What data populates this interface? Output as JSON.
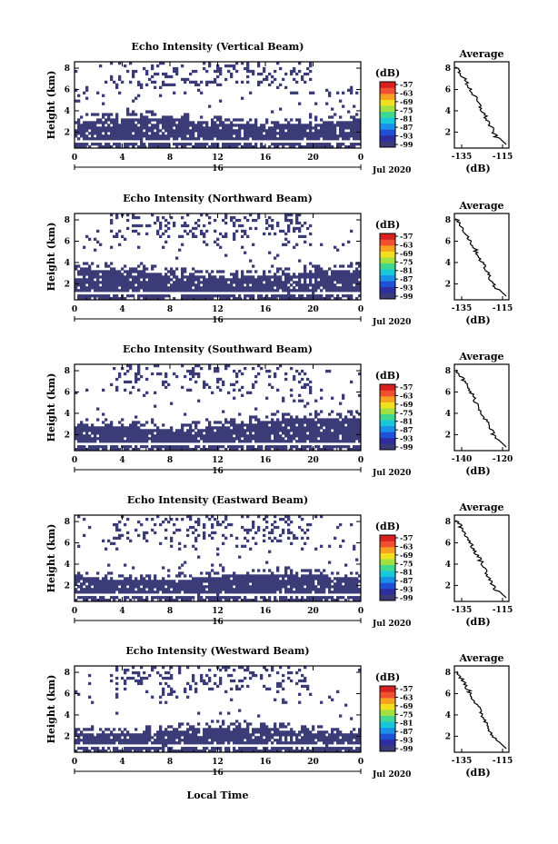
{
  "figure": {
    "common_xlabel": "Local Time",
    "date_label": "Jul 2020",
    "day_label": "16"
  },
  "colors": {
    "fill": "#3b3b78",
    "colorbar": [
      "#3b3b78",
      "#2e2ea0",
      "#2050d8",
      "#1a90e8",
      "#18c8d8",
      "#40d890",
      "#a0e040",
      "#f0e020",
      "#f8a020",
      "#f05030",
      "#d82020"
    ]
  },
  "chart_data": [
    {
      "type": "heatmap",
      "title": "Echo Intensity (Vertical Beam)",
      "ylabel": "Height (km)",
      "x_ticks": [
        "0",
        "4",
        "8",
        "12",
        "16",
        "20",
        "0"
      ],
      "y_ticks": [
        "8",
        "6",
        "4",
        "2"
      ],
      "colorbar_unit": "(dB)",
      "colorbar_ticks": [
        "-57",
        "-63",
        "-69",
        "-75",
        "-81",
        "-87",
        "-93",
        "-99"
      ],
      "dense_layer_km": [
        1.3,
        3.0
      ],
      "avg": {
        "title": "Average",
        "xlabel": "(dB)",
        "x_ticks": [
          "-135",
          "-115"
        ],
        "y_ticks": [
          "8",
          "6",
          "4",
          "2"
        ]
      }
    },
    {
      "type": "heatmap",
      "title": "Echo Intensity (Northward Beam)",
      "ylabel": "Height (km)",
      "x_ticks": [
        "0",
        "4",
        "8",
        "12",
        "16",
        "20",
        "0"
      ],
      "y_ticks": [
        "8",
        "6",
        "4",
        "2"
      ],
      "colorbar_unit": "(dB)",
      "colorbar_ticks": [
        "-57",
        "-63",
        "-69",
        "-75",
        "-81",
        "-87",
        "-93",
        "-99"
      ],
      "dense_layer_km": [
        1.2,
        3.0
      ],
      "avg": {
        "title": "Average",
        "xlabel": "(dB)",
        "x_ticks": [
          "-135",
          "-115"
        ],
        "y_ticks": [
          "8",
          "6",
          "4",
          "2"
        ]
      }
    },
    {
      "type": "heatmap",
      "title": "Echo Intensity (Southward Beam)",
      "ylabel": "Height (km)",
      "x_ticks": [
        "0",
        "4",
        "8",
        "12",
        "16",
        "20",
        "0"
      ],
      "y_ticks": [
        "8",
        "6",
        "4",
        "2"
      ],
      "colorbar_unit": "(dB)",
      "colorbar_ticks": [
        "-57",
        "-63",
        "-69",
        "-75",
        "-81",
        "-87",
        "-93",
        "-99"
      ],
      "dense_layer_km": [
        1.2,
        2.6
      ],
      "avg": {
        "title": "Average",
        "xlabel": "(dB)",
        "x_ticks": [
          "-140",
          "-120"
        ],
        "y_ticks": [
          "8",
          "6",
          "4",
          "2"
        ]
      }
    },
    {
      "type": "heatmap",
      "title": "Echo Intensity (Eastward Beam)",
      "ylabel": "Height (km)",
      "x_ticks": [
        "0",
        "4",
        "8",
        "12",
        "16",
        "20",
        "0"
      ],
      "y_ticks": [
        "8",
        "6",
        "4",
        "2"
      ],
      "colorbar_unit": "(dB)",
      "colorbar_ticks": [
        "-57",
        "-63",
        "-69",
        "-75",
        "-81",
        "-87",
        "-93",
        "-99"
      ],
      "dense_layer_km": [
        1.2,
        2.8
      ],
      "avg": {
        "title": "Average",
        "xlabel": "(dB)",
        "x_ticks": [
          "-135",
          "-115"
        ],
        "y_ticks": [
          "8",
          "6",
          "4",
          "2"
        ]
      }
    },
    {
      "type": "heatmap",
      "title": "Echo Intensity (Westward Beam)",
      "ylabel": "Height (km)",
      "x_ticks": [
        "0",
        "4",
        "8",
        "12",
        "16",
        "20",
        "0"
      ],
      "y_ticks": [
        "8",
        "6",
        "4",
        "2"
      ],
      "colorbar_unit": "(dB)",
      "colorbar_ticks": [
        "-57",
        "-63",
        "-69",
        "-75",
        "-81",
        "-87",
        "-93",
        "-99"
      ],
      "dense_layer_km": [
        1.2,
        2.5
      ],
      "avg": {
        "title": "Average",
        "xlabel": "(dB)",
        "x_ticks": [
          "-135",
          "-115"
        ],
        "y_ticks": [
          "8",
          "6",
          "4",
          "2"
        ]
      }
    }
  ]
}
